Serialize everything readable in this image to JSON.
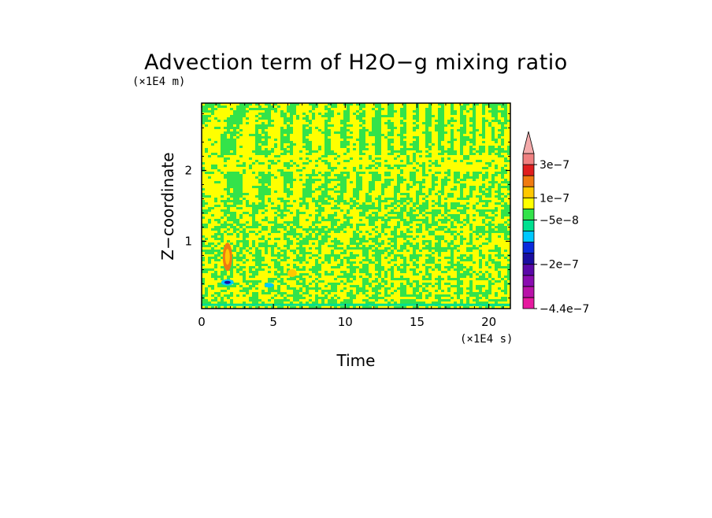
{
  "chart_data": {
    "type": "heatmap",
    "title": "Advection term of H2O−g mixing ratio",
    "xlabel": "Time",
    "ylabel": "Z−coordinate",
    "x_unit": "(×1E4 s)",
    "y_unit": "(×1E4 m)",
    "xlim": [
      0,
      21.5
    ],
    "ylim": [
      0.05,
      2.95
    ],
    "x_ticks": [
      0,
      5,
      10,
      15,
      20
    ],
    "x_tick_labels": [
      "0",
      "5",
      "10",
      "15",
      "20"
    ],
    "y_ticks": [
      1,
      2
    ],
    "y_tick_labels": [
      "1",
      "2"
    ],
    "colorbar": {
      "levels": [
        -4.4e-07,
        -3.4e-07,
        -2.8e-07,
        -2.4e-07,
        -2e-07,
        -1.6e-07,
        -1.2e-07,
        -8e-08,
        -5e-08,
        0,
        1e-07,
        1.6e-07,
        2.2e-07,
        3e-07
      ],
      "colors": [
        "#e6199f",
        "#b812a8",
        "#8a0cb0",
        "#5a08a8",
        "#1a0da0",
        "#0a2bdc",
        "#00c8ff",
        "#00e090",
        "#33e34a",
        "#ffff00",
        "#ffc800",
        "#f07a10",
        "#e01e1e",
        "#f08080",
        "#f4aaaa"
      ],
      "labels": [
        "3e−7",
        "1e−7",
        "−5e−8",
        "−2e−7",
        "−4.4e−7"
      ],
      "label_values": [
        3e-07,
        1e-07,
        -5e-08,
        -2e-07,
        -4.4e-07
      ],
      "extend": "max"
    },
    "field_description_values": {
      "dominant_positive": "#ffff00",
      "dominant_negative": "#33e34a"
    }
  }
}
